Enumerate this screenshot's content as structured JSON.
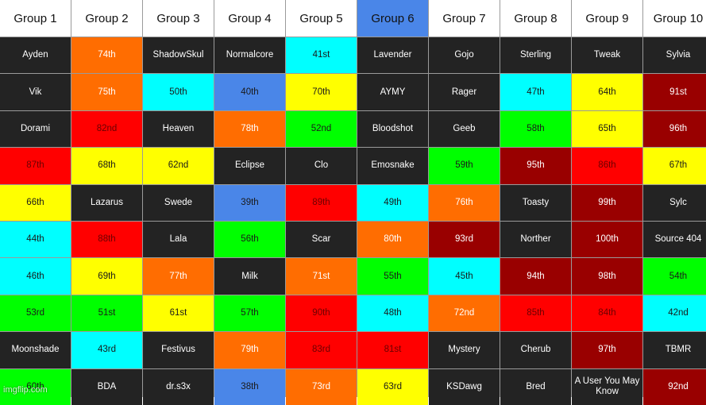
{
  "headers": [
    "Group 1",
    "Group 2",
    "Group 3",
    "Group 4",
    "Group 5",
    "Group 6",
    "Group 7",
    "Group 8",
    "Group 9",
    "Group 10"
  ],
  "selected_header": 5,
  "colors": {
    "dark": "#232323",
    "orange": "#ff6d01",
    "cyan": "#00ffff",
    "yellow": "#ffff00",
    "blue": "#4a86e8",
    "red": "#ff0000",
    "green": "#00ff00",
    "maroon": "#990000"
  },
  "rows": [
    [
      [
        "Ayden",
        "dark"
      ],
      [
        "74th",
        "orange"
      ],
      [
        "ShadowSkul",
        "dark"
      ],
      [
        "Normalcore",
        "dark"
      ],
      [
        "41st",
        "cyan"
      ],
      [
        "Lavender",
        "dark"
      ],
      [
        "Gojo",
        "dark"
      ],
      [
        "Sterling",
        "dark"
      ],
      [
        "Tweak",
        "dark"
      ],
      [
        "Sylvia",
        "dark"
      ]
    ],
    [
      [
        "Vik",
        "dark"
      ],
      [
        "75th",
        "orange"
      ],
      [
        "50th",
        "cyan"
      ],
      [
        "40th",
        "blue"
      ],
      [
        "70th",
        "yellow"
      ],
      [
        "AYMY",
        "dark"
      ],
      [
        "Rager",
        "dark"
      ],
      [
        "47th",
        "cyan"
      ],
      [
        "64th",
        "yellow"
      ],
      [
        "91st",
        "maroon"
      ]
    ],
    [
      [
        "Dorami",
        "dark"
      ],
      [
        "82nd",
        "red"
      ],
      [
        "Heaven",
        "dark"
      ],
      [
        "78th",
        "orange"
      ],
      [
        "52nd",
        "green"
      ],
      [
        "Bloodshot",
        "dark"
      ],
      [
        "Geeb",
        "dark"
      ],
      [
        "58th",
        "green"
      ],
      [
        "65th",
        "yellow"
      ],
      [
        "96th",
        "maroon"
      ]
    ],
    [
      [
        "87th",
        "red"
      ],
      [
        "68th",
        "yellow"
      ],
      [
        "62nd",
        "yellow"
      ],
      [
        "Eclipse",
        "dark"
      ],
      [
        "Clo",
        "dark"
      ],
      [
        "Emosnake",
        "dark"
      ],
      [
        "59th",
        "green"
      ],
      [
        "95th",
        "maroon"
      ],
      [
        "86th",
        "red"
      ],
      [
        "67th",
        "yellow"
      ]
    ],
    [
      [
        "66th",
        "yellow"
      ],
      [
        "Lazarus",
        "dark"
      ],
      [
        "Swede",
        "dark"
      ],
      [
        "39th",
        "blue"
      ],
      [
        "89th",
        "red"
      ],
      [
        "49th",
        "cyan"
      ],
      [
        "76th",
        "orange"
      ],
      [
        "Toasty",
        "dark"
      ],
      [
        "99th",
        "maroon"
      ],
      [
        "Sylc",
        "dark"
      ]
    ],
    [
      [
        "44th",
        "cyan"
      ],
      [
        "88th",
        "red"
      ],
      [
        "Lala",
        "dark"
      ],
      [
        "56th",
        "green"
      ],
      [
        "Scar",
        "dark"
      ],
      [
        "80th",
        "orange"
      ],
      [
        "93rd",
        "maroon"
      ],
      [
        "Norther",
        "dark"
      ],
      [
        "100th",
        "maroon"
      ],
      [
        "Source 404",
        "dark"
      ]
    ],
    [
      [
        "46th",
        "cyan"
      ],
      [
        "69th",
        "yellow"
      ],
      [
        "77th",
        "orange"
      ],
      [
        "Milk",
        "dark"
      ],
      [
        "71st",
        "orange"
      ],
      [
        "55th",
        "green"
      ],
      [
        "45th",
        "cyan"
      ],
      [
        "94th",
        "maroon"
      ],
      [
        "98th",
        "maroon"
      ],
      [
        "54th",
        "green"
      ]
    ],
    [
      [
        "53rd",
        "green"
      ],
      [
        "51st",
        "green"
      ],
      [
        "61st",
        "yellow"
      ],
      [
        "57th",
        "green"
      ],
      [
        "90th",
        "red"
      ],
      [
        "48th",
        "cyan"
      ],
      [
        "72nd",
        "orange"
      ],
      [
        "85th",
        "red"
      ],
      [
        "84th",
        "red"
      ],
      [
        "42nd",
        "cyan"
      ]
    ],
    [
      [
        "Moonshade",
        "dark"
      ],
      [
        "43rd",
        "cyan"
      ],
      [
        "Festivus",
        "dark"
      ],
      [
        "79th",
        "orange"
      ],
      [
        "83rd",
        "red"
      ],
      [
        "81st",
        "red"
      ],
      [
        "Mystery",
        "dark"
      ],
      [
        "Cherub",
        "dark"
      ],
      [
        "97th",
        "maroon"
      ],
      [
        "TBMR",
        "dark"
      ]
    ],
    [
      [
        "60th",
        "green"
      ],
      [
        "BDA",
        "dark"
      ],
      [
        "dr.s3x",
        "dark"
      ],
      [
        "38th",
        "blue"
      ],
      [
        "73rd",
        "orange"
      ],
      [
        "63rd",
        "yellow"
      ],
      [
        "KSDawg",
        "dark"
      ],
      [
        "Bred",
        "dark"
      ],
      [
        "A User You May Know",
        "dark"
      ],
      [
        "92nd",
        "maroon"
      ]
    ]
  ],
  "watermark": "imgflip.com"
}
